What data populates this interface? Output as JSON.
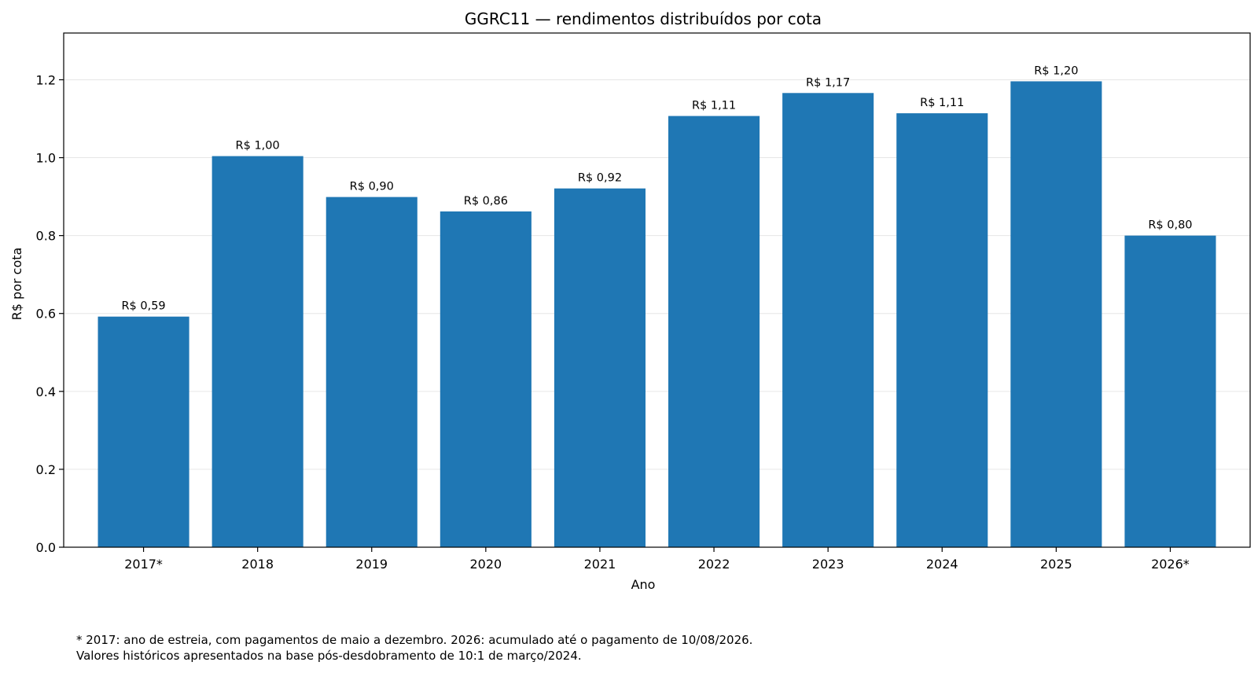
{
  "chart_data": {
    "type": "bar",
    "title": "GGRC11 — rendimentos distribuídos por cota",
    "xlabel": "Ano",
    "ylabel": "R$ por cota",
    "categories": [
      "2017*",
      "2018",
      "2019",
      "2020",
      "2021",
      "2022",
      "2023",
      "2024",
      "2025",
      "2026*"
    ],
    "values": [
      0.592,
      1.004,
      0.899,
      0.862,
      0.921,
      1.107,
      1.166,
      1.114,
      1.196,
      0.8
    ],
    "value_labels": [
      "R$ 0,59",
      "R$ 1,00",
      "R$ 0,90",
      "R$ 0,86",
      "R$ 0,92",
      "R$ 1,11",
      "R$ 1,17",
      "R$ 1,11",
      "R$ 1,20",
      "R$ 0,80"
    ],
    "yticks": [
      "0.0",
      "0.2",
      "0.4",
      "0.6",
      "0.8",
      "1.0",
      "1.2"
    ],
    "ylim": [
      0,
      1.32
    ],
    "bar_color": "#1f77b4",
    "grid": "horizontal, light"
  },
  "footnotes": [
    "* 2017: ano de estreia, com pagamentos de maio a dezembro. 2026: acumulado até o pagamento de 10/08/2026.",
    "Valores históricos apresentados na base pós-desdobramento de 10:1 de março/2024."
  ]
}
